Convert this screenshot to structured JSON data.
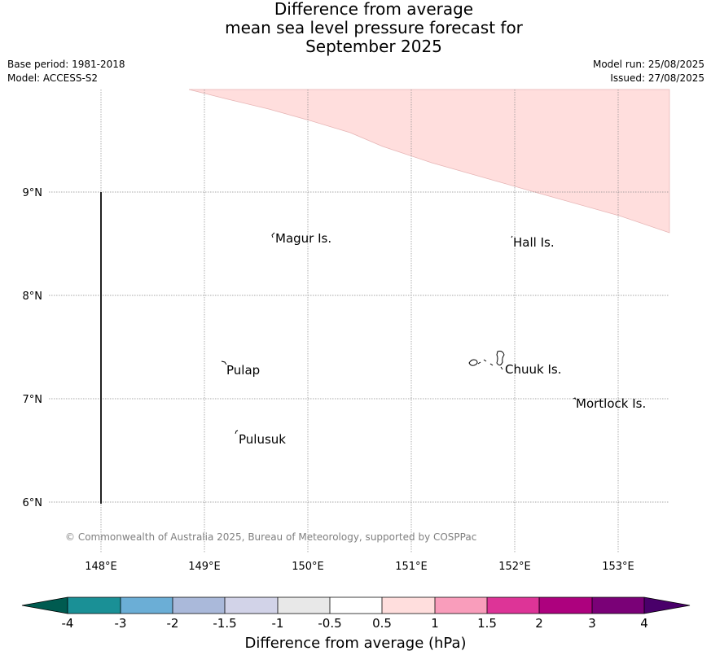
{
  "title": [
    "Difference from average",
    "mean sea level pressure forecast for",
    "September 2025"
  ],
  "meta_left": [
    "Base period: 1981-2018",
    "Model: ACCESS-S2"
  ],
  "meta_right": [
    "Model run: 25/08/2025",
    "Issued: 27/08/2025"
  ],
  "map": {
    "lon_ticks": [
      "148°E",
      "149°E",
      "150°E",
      "151°E",
      "152°E",
      "153°E"
    ],
    "lat_ticks": [
      "9°N",
      "8°N",
      "7°N",
      "6°N"
    ],
    "places": [
      "Magur Is.",
      "Hall Is.",
      "Pulap",
      "Chuuk Is.",
      "Mortlock Is.",
      "Pulusuk"
    ],
    "anomaly_fill_color": "#ffdedd",
    "copyright": "© Commonwealth of Australia 2025, Bureau of Meteorology, supported by COSPPac"
  },
  "colorbar": {
    "label": "Difference from average (hPa)",
    "ticks": [
      "-4",
      "-3",
      "-2",
      "-1.5",
      "-1",
      "-0.5",
      "0.5",
      "1",
      "1.5",
      "2",
      "3",
      "4"
    ],
    "colors": {
      "below_min": "#005b50",
      "bins": [
        "#1a9096",
        "#6baed6",
        "#aab9da",
        "#d2d3e8",
        "#e8e8e8",
        "#ffffff",
        "#ffdedd",
        "#f99dbb",
        "#dd3497",
        "#ad017e",
        "#7a0177"
      ],
      "above_max": "#49006a"
    }
  }
}
